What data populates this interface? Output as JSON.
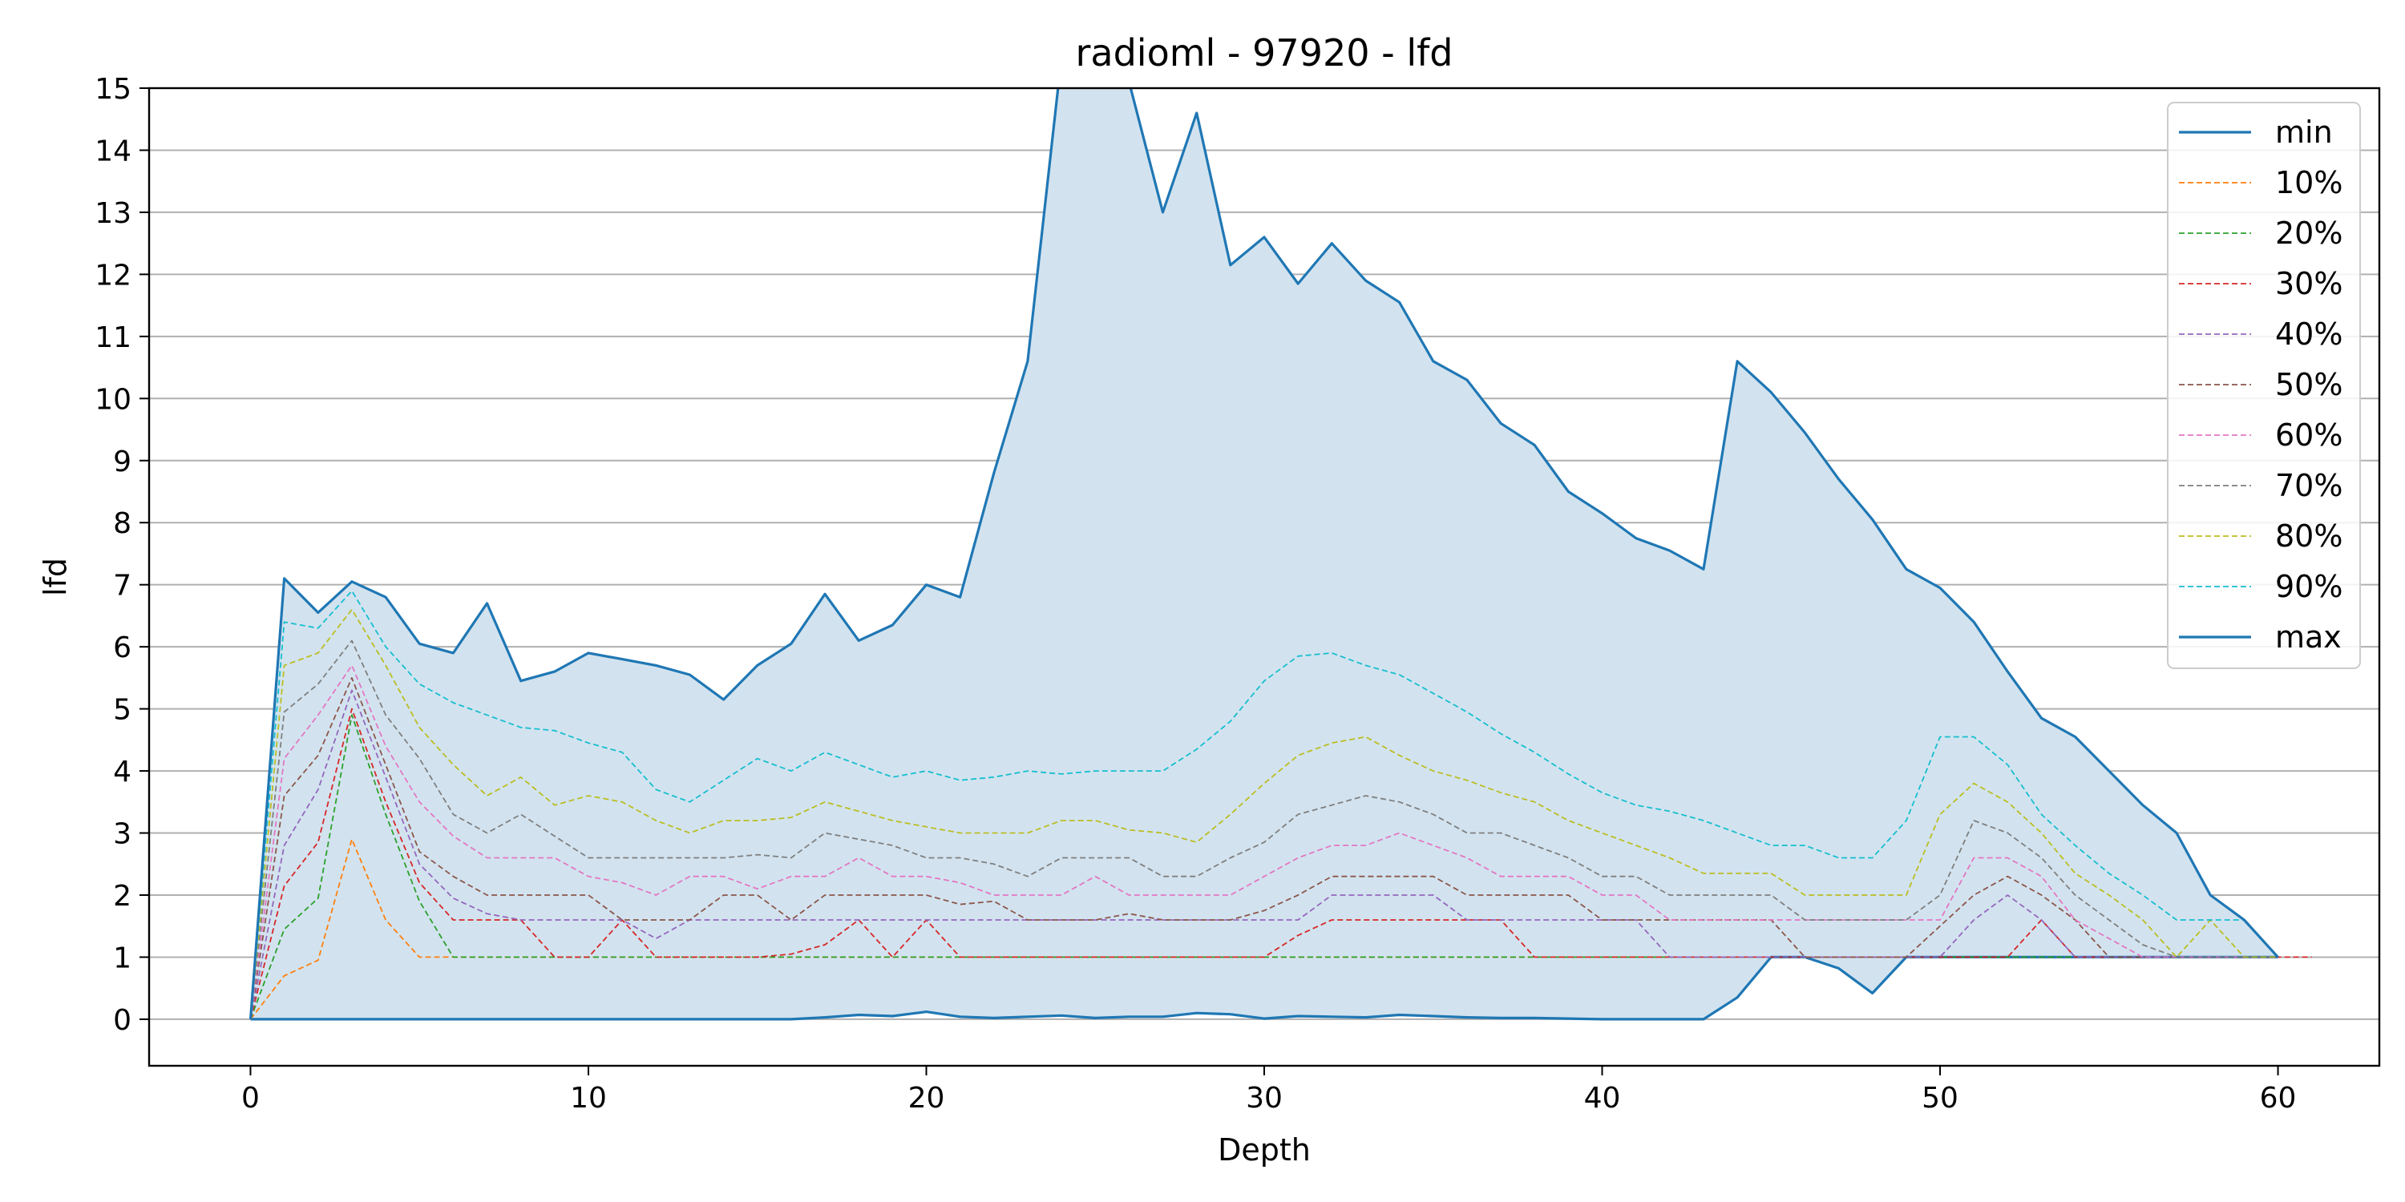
{
  "chart_data": {
    "type": "line",
    "title": "radioml - 97920 - lfd",
    "xlabel": "Depth",
    "ylabel": "lfd",
    "xlim": [
      -3,
      63
    ],
    "ylim": [
      -0.75,
      15
    ],
    "xticks": [
      0,
      10,
      20,
      30,
      40,
      50,
      60
    ],
    "yticks": [
      0,
      1,
      2,
      3,
      4,
      5,
      6,
      7,
      8,
      9,
      10,
      11,
      12,
      13,
      14,
      15
    ],
    "grid": "horizontal",
    "legend_position": "top-right",
    "fill_between": [
      "min",
      "max"
    ],
    "fill_color": "#d2e3ef",
    "series": [
      {
        "name": "min",
        "color": "#1f77b4",
        "style": "solid",
        "values": [
          0,
          0,
          0,
          0,
          0,
          0,
          0,
          0,
          0,
          0,
          0,
          0,
          0,
          0,
          0,
          0,
          0,
          0.03,
          0.07,
          0.05,
          0.12,
          0.04,
          0.02,
          0.04,
          0.06,
          0.02,
          0.04,
          0.04,
          0.1,
          0.08,
          0.01,
          0.05,
          0.04,
          0.03,
          0.07,
          0.05,
          0.03,
          0.02,
          0.02,
          0.01,
          0,
          0,
          0,
          0,
          0.35,
          1,
          1,
          0.82,
          0.42,
          1,
          1,
          1,
          1,
          1,
          1,
          1,
          1,
          1,
          1,
          1,
          1
        ]
      },
      {
        "name": "10%",
        "color": "#ff7f0e",
        "style": "dashed",
        "values": [
          0,
          0.7,
          0.95,
          2.9,
          1.6,
          1,
          1,
          1,
          1,
          1,
          1,
          1,
          1,
          1,
          1,
          1,
          1,
          1,
          1,
          1,
          1,
          1,
          1,
          1,
          1,
          1,
          1,
          1,
          1,
          1,
          1,
          1,
          1,
          1,
          1,
          1,
          1,
          1,
          1,
          1,
          1,
          1,
          1,
          1,
          1,
          1,
          1,
          1,
          1,
          1,
          1,
          1,
          1,
          1,
          1,
          1,
          1,
          1,
          1,
          1,
          1
        ]
      },
      {
        "name": "20%",
        "color": "#2ca02c",
        "style": "dashed",
        "values": [
          0,
          1.45,
          1.95,
          4.9,
          3.3,
          1.9,
          1,
          1,
          1,
          1,
          1,
          1,
          1,
          1,
          1,
          1,
          1,
          1,
          1,
          1,
          1,
          1,
          1,
          1,
          1,
          1,
          1,
          1,
          1,
          1,
          1,
          1,
          1,
          1,
          1,
          1,
          1,
          1,
          1,
          1,
          1,
          1,
          1,
          1,
          1,
          1,
          1,
          1,
          1,
          1,
          1,
          1,
          1,
          1,
          1,
          1,
          1,
          1,
          1,
          1,
          1
        ]
      },
      {
        "name": "30%",
        "color": "#d62728",
        "style": "dashed",
        "values": [
          0,
          2.15,
          2.85,
          5.0,
          3.5,
          2.2,
          1.6,
          1.6,
          1.6,
          1,
          1,
          1.6,
          1,
          1,
          1,
          1,
          1.05,
          1.2,
          1.6,
          1,
          1.6,
          1,
          1,
          1,
          1,
          1,
          1,
          1,
          1,
          1,
          1,
          1.35,
          1.6,
          1.6,
          1.6,
          1.6,
          1.6,
          1.6,
          1,
          1,
          1,
          1,
          1,
          1,
          1,
          1,
          1,
          1,
          1,
          1,
          1,
          1,
          1,
          1.6,
          1,
          1,
          1,
          1,
          1,
          1,
          1,
          1
        ]
      },
      {
        "name": "40%",
        "color": "#9467bd",
        "style": "dashed",
        "values": [
          0,
          2.8,
          3.7,
          5.3,
          3.9,
          2.5,
          1.95,
          1.7,
          1.6,
          1.6,
          1.6,
          1.6,
          1.3,
          1.6,
          1.6,
          1.6,
          1.6,
          1.6,
          1.6,
          1.6,
          1.6,
          1.6,
          1.6,
          1.6,
          1.6,
          1.6,
          1.6,
          1.6,
          1.6,
          1.6,
          1.6,
          1.6,
          2.0,
          2.0,
          2.0,
          2.0,
          1.6,
          1.6,
          1.6,
          1.6,
          1.6,
          1.6,
          1,
          1,
          1,
          1,
          1,
          1,
          1,
          1,
          1,
          1.6,
          2.0,
          1.6,
          1,
          1,
          1,
          1,
          1,
          1,
          1
        ]
      },
      {
        "name": "50%",
        "color": "#8c564b",
        "style": "dashed",
        "values": [
          0,
          3.6,
          4.25,
          5.5,
          4.1,
          2.7,
          2.3,
          2.0,
          2.0,
          2.0,
          2.0,
          1.6,
          1.6,
          1.6,
          2.0,
          2.0,
          1.6,
          2.0,
          2.0,
          2.0,
          2.0,
          1.85,
          1.9,
          1.6,
          1.6,
          1.6,
          1.7,
          1.6,
          1.6,
          1.6,
          1.75,
          2.0,
          2.3,
          2.3,
          2.3,
          2.3,
          2.0,
          2.0,
          2.0,
          2.0,
          1.6,
          1.6,
          1.6,
          1.6,
          1.6,
          1.6,
          1,
          1,
          1,
          1,
          1.5,
          2.0,
          2.3,
          2.0,
          1.6,
          1,
          1,
          1,
          1,
          1,
          1
        ]
      },
      {
        "name": "60%",
        "color": "#e377c2",
        "style": "dashed",
        "values": [
          0,
          4.2,
          4.9,
          5.7,
          4.4,
          3.5,
          2.95,
          2.6,
          2.6,
          2.6,
          2.3,
          2.2,
          2.0,
          2.3,
          2.3,
          2.1,
          2.3,
          2.3,
          2.6,
          2.3,
          2.3,
          2.2,
          2.0,
          2.0,
          2.0,
          2.3,
          2.0,
          2.0,
          2.0,
          2.0,
          2.3,
          2.6,
          2.8,
          2.8,
          3.0,
          2.8,
          2.6,
          2.3,
          2.3,
          2.3,
          2.0,
          2.0,
          1.6,
          1.6,
          1.6,
          1.6,
          1.6,
          1.6,
          1.6,
          1.6,
          1.6,
          2.6,
          2.6,
          2.3,
          1.6,
          1.3,
          1,
          1,
          1,
          1,
          1
        ]
      },
      {
        "name": "70%",
        "color": "#7f7f7f",
        "style": "dashed",
        "values": [
          0,
          4.95,
          5.4,
          6.1,
          4.9,
          4.2,
          3.3,
          3.0,
          3.3,
          2.95,
          2.6,
          2.6,
          2.6,
          2.6,
          2.6,
          2.65,
          2.6,
          3.0,
          2.9,
          2.8,
          2.6,
          2.6,
          2.5,
          2.3,
          2.6,
          2.6,
          2.6,
          2.3,
          2.3,
          2.6,
          2.85,
          3.3,
          3.45,
          3.6,
          3.5,
          3.3,
          3.0,
          3.0,
          2.8,
          2.6,
          2.3,
          2.3,
          2.0,
          2.0,
          2.0,
          2.0,
          1.6,
          1.6,
          1.6,
          1.6,
          2.0,
          3.2,
          3.0,
          2.6,
          2.0,
          1.6,
          1.2,
          1,
          1,
          1,
          1
        ]
      },
      {
        "name": "80%",
        "color": "#bcbd22",
        "style": "dashed",
        "values": [
          0,
          5.7,
          5.9,
          6.6,
          5.7,
          4.7,
          4.1,
          3.6,
          3.9,
          3.45,
          3.6,
          3.5,
          3.2,
          3.0,
          3.2,
          3.2,
          3.25,
          3.5,
          3.35,
          3.2,
          3.1,
          3.0,
          3.0,
          3.0,
          3.2,
          3.2,
          3.05,
          3.0,
          2.85,
          3.3,
          3.8,
          4.25,
          4.45,
          4.55,
          4.25,
          4.0,
          3.85,
          3.65,
          3.5,
          3.2,
          3.0,
          2.8,
          2.6,
          2.35,
          2.35,
          2.35,
          2.0,
          2.0,
          2.0,
          2.0,
          3.3,
          3.8,
          3.5,
          3.0,
          2.35,
          2.0,
          1.6,
          1.0,
          1.6,
          1.0,
          1.0
        ]
      },
      {
        "name": "90%",
        "color": "#17becf",
        "style": "dashed",
        "values": [
          0,
          6.4,
          6.3,
          6.9,
          6.0,
          5.4,
          5.1,
          4.9,
          4.7,
          4.65,
          4.45,
          4.3,
          3.7,
          3.5,
          3.85,
          4.2,
          4.0,
          4.3,
          4.1,
          3.9,
          4.0,
          3.85,
          3.9,
          4.0,
          3.95,
          4.0,
          4.0,
          4.0,
          4.35,
          4.8,
          5.45,
          5.85,
          5.9,
          5.7,
          5.55,
          5.25,
          4.95,
          4.6,
          4.3,
          3.95,
          3.65,
          3.45,
          3.35,
          3.2,
          3.0,
          2.8,
          2.8,
          2.6,
          2.6,
          3.2,
          4.55,
          4.55,
          4.1,
          3.3,
          2.8,
          2.35,
          2.0,
          1.6,
          1.6,
          1.6,
          1.0
        ]
      },
      {
        "name": "max",
        "color": "#1f77b4",
        "style": "solid",
        "values": [
          0,
          7.1,
          6.55,
          7.05,
          6.8,
          6.05,
          5.9,
          6.7,
          5.45,
          5.6,
          5.9,
          5.8,
          5.7,
          5.55,
          5.15,
          5.7,
          6.05,
          6.85,
          6.1,
          6.35,
          7.0,
          6.8,
          8.8,
          10.6,
          15.5,
          16.0,
          15.1,
          13.0,
          14.6,
          12.15,
          12.6,
          11.85,
          12.5,
          11.9,
          11.55,
          10.6,
          10.3,
          9.6,
          9.25,
          8.5,
          8.15,
          7.75,
          7.55,
          7.25,
          10.6,
          10.1,
          9.45,
          8.7,
          8.05,
          7.25,
          6.95,
          6.4,
          5.6,
          4.85,
          4.55,
          4.0,
          3.45,
          3.0,
          2.0,
          1.6,
          1.0
        ]
      }
    ]
  }
}
